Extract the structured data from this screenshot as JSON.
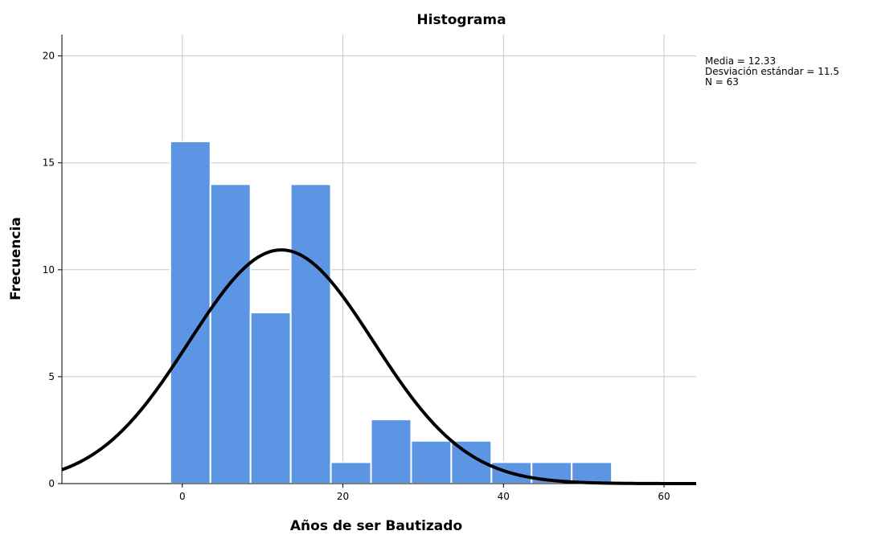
{
  "chart_data": {
    "type": "bar",
    "title": "Histograma",
    "xlabel": "Años de ser Bautizado",
    "ylabel": "Frecuencia",
    "xlim": [
      -15,
      64
    ],
    "ylim": [
      0,
      21
    ],
    "x_ticks": [
      0,
      20,
      40,
      60
    ],
    "y_ticks": [
      0,
      5,
      10,
      15,
      20
    ],
    "grid": true,
    "bin_width": 5,
    "bins": [
      {
        "start": -1.5,
        "end": 3.5,
        "count": 16
      },
      {
        "start": 3.5,
        "end": 8.5,
        "count": 14
      },
      {
        "start": 8.5,
        "end": 13.5,
        "count": 8
      },
      {
        "start": 13.5,
        "end": 18.5,
        "count": 14
      },
      {
        "start": 18.5,
        "end": 23.5,
        "count": 1
      },
      {
        "start": 23.5,
        "end": 28.5,
        "count": 3
      },
      {
        "start": 28.5,
        "end": 33.5,
        "count": 2
      },
      {
        "start": 33.5,
        "end": 38.5,
        "count": 2
      },
      {
        "start": 38.5,
        "end": 43.5,
        "count": 1
      },
      {
        "start": 43.5,
        "end": 48.5,
        "count": 1
      },
      {
        "start": 48.5,
        "end": 53.5,
        "count": 1
      }
    ],
    "bar_color": "#5b95e4",
    "normal_curve": {
      "mean": 12.33,
      "sd": 11.5,
      "n": 63
    },
    "stats": {
      "mean_label": "Media = 12.33",
      "sd_label": "Desviación estándar = 11.5",
      "n_label": "N = 63"
    }
  }
}
